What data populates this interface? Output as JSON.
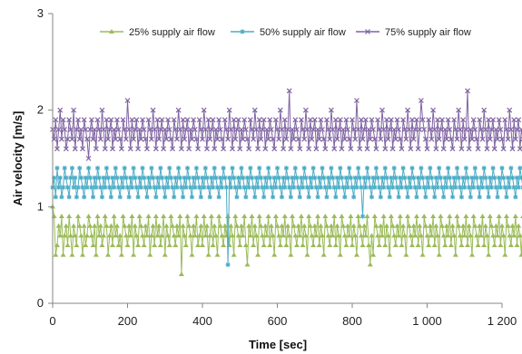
{
  "chart_data": {
    "type": "line",
    "xlabel": "Time [sec]",
    "ylabel": "Air velocity [m/s]",
    "xlim": [
      0,
      1200
    ],
    "ylim": [
      0,
      3
    ],
    "xticks": [
      0,
      200,
      400,
      600,
      800,
      1000,
      1200
    ],
    "xtick_labels": [
      "0",
      "200",
      "400",
      "600",
      "800",
      "1 000",
      "1 200"
    ],
    "yticks": [
      0,
      1,
      2,
      3
    ],
    "ytick_labels": [
      "0",
      "1",
      "2",
      "3"
    ],
    "grid": false,
    "legend_position": "top-right",
    "sample_interval_sec": 4,
    "series": [
      {
        "name": "25% supply air flow",
        "color": "#9BBB59",
        "marker": "triangle",
        "values": [
          1.0,
          0.9,
          0.5,
          0.6,
          0.8,
          0.7,
          0.9,
          0.5,
          0.7,
          0.8,
          0.6,
          0.9,
          0.7,
          0.5,
          0.8,
          0.7,
          0.6,
          0.9,
          0.8,
          0.7,
          0.5,
          0.8,
          0.6,
          0.7,
          0.9,
          0.8,
          0.7,
          0.6,
          0.8,
          0.5,
          0.9,
          0.7,
          0.8,
          0.6,
          0.7,
          0.9,
          0.8,
          0.5,
          0.7,
          0.8,
          0.6,
          0.9,
          0.7,
          0.8,
          0.6,
          0.7,
          0.5,
          0.9,
          0.8,
          0.7,
          0.6,
          0.8,
          0.7,
          0.9,
          0.5,
          0.8,
          0.7,
          0.6,
          0.9,
          0.8,
          0.7,
          0.6,
          0.8,
          0.7,
          0.9,
          0.5,
          0.7,
          0.8,
          0.6,
          0.9,
          0.7,
          0.8,
          0.6,
          0.7,
          0.9,
          0.5,
          0.8,
          0.7,
          0.6,
          0.9,
          0.8,
          0.7,
          0.6,
          0.8,
          0.7,
          0.9,
          0.3,
          0.8,
          0.7,
          0.6,
          0.9,
          0.8,
          0.7,
          0.5,
          0.8,
          0.7,
          0.9,
          0.6,
          0.7,
          0.8,
          0.6,
          0.9,
          0.7,
          0.8,
          0.5,
          0.7,
          0.9,
          0.6,
          0.8,
          0.7,
          0.5,
          0.9,
          0.8,
          0.7,
          0.6,
          0.8,
          0.7,
          0.9,
          0.6,
          0.8,
          0.7,
          0.5,
          0.9,
          0.8,
          0.7,
          0.6,
          0.8,
          0.7,
          0.9,
          0.6,
          0.4,
          0.8,
          0.7,
          0.9,
          0.6,
          0.8,
          0.7,
          0.5,
          0.9,
          0.8,
          0.7,
          0.6,
          0.8,
          0.7,
          0.9,
          0.6,
          0.8,
          0.7,
          0.5,
          0.9,
          0.8,
          0.7,
          0.6,
          0.8,
          0.7,
          0.9,
          0.6,
          0.8,
          0.7,
          0.5,
          0.9,
          0.8,
          0.7,
          0.6,
          0.8,
          0.7,
          0.9,
          0.6,
          0.8,
          0.7,
          0.5,
          0.9,
          0.8,
          0.7,
          0.6,
          0.8,
          0.7,
          0.9,
          0.6,
          0.8,
          0.7,
          0.5,
          0.9,
          0.8,
          0.7,
          0.6,
          0.8,
          0.7,
          0.9,
          0.6,
          0.8,
          0.7,
          0.5,
          0.9,
          0.8,
          0.7,
          0.6,
          0.8,
          0.7,
          0.9,
          0.6,
          0.8,
          0.7,
          0.5,
          0.9,
          0.8,
          0.7,
          0.6,
          0.8,
          0.7,
          0.9,
          0.6,
          0.4,
          0.7,
          0.5,
          0.9,
          0.8,
          0.7,
          0.6,
          0.8,
          0.7,
          0.9,
          0.6,
          0.8,
          0.7,
          0.5,
          0.9,
          0.8,
          0.7,
          0.6,
          0.8,
          0.7,
          0.9,
          0.6,
          0.8,
          0.7,
          0.5,
          0.9,
          0.8,
          0.7,
          0.6,
          0.8,
          0.7,
          0.9,
          0.6,
          0.8,
          0.7,
          0.5,
          0.9,
          0.8,
          0.7,
          0.6,
          0.8,
          0.7,
          0.9,
          0.6,
          0.8,
          0.7,
          0.5,
          0.9,
          0.8,
          0.7,
          0.6,
          0.8,
          0.7,
          0.9,
          0.6,
          0.8,
          0.7,
          0.5,
          0.9,
          0.8,
          0.7,
          0.6,
          0.8,
          0.7,
          0.9,
          0.6,
          0.8,
          0.7,
          0.5,
          0.9,
          0.8,
          0.7,
          0.6,
          0.8,
          0.7,
          0.9,
          0.6,
          0.8,
          0.7,
          0.5,
          0.9,
          0.8,
          0.7,
          0.6,
          0.8,
          0.7,
          0.9,
          0.6,
          0.8,
          0.7,
          0.5,
          0.9,
          0.8,
          0.7,
          0.6,
          0.8,
          0.7,
          0.9,
          0.6,
          0.8,
          0.7,
          0.5,
          0.9,
          0.8,
          0.7,
          0.6,
          0.8,
          0.7,
          0.9,
          0.6,
          0.8,
          0.7,
          0.5,
          0.9,
          0.8,
          0.7,
          0.6,
          0.8,
          0.7,
          0.9,
          0.6,
          0.8,
          0.7,
          0.5,
          0.9,
          0.8,
          0.7,
          0.6,
          0.8,
          0.7,
          1.0
        ]
      },
      {
        "name": "50% supply air flow",
        "color": "#4BACC6",
        "marker": "asterisk",
        "values": [
          1.2,
          1.3,
          1.1,
          1.4,
          1.2,
          1.3,
          1.1,
          1.2,
          1.4,
          1.3,
          1.2,
          1.1,
          1.3,
          1.4,
          1.2,
          1.3,
          1.1,
          1.2,
          1.4,
          1.3,
          1.2,
          1.1,
          1.3,
          1.2,
          1.4,
          1.3,
          1.2,
          1.1,
          1.3,
          1.2,
          1.4,
          1.3,
          1.2,
          1.1,
          1.3,
          1.2,
          1.4,
          1.3,
          1.2,
          1.1,
          1.3,
          1.2,
          1.4,
          1.3,
          1.2,
          1.1,
          1.3,
          1.2,
          1.4,
          1.3,
          1.2,
          1.1,
          1.3,
          1.2,
          1.4,
          1.3,
          1.2,
          1.1,
          1.3,
          1.2,
          1.4,
          1.3,
          1.2,
          1.1,
          1.3,
          1.2,
          1.4,
          1.3,
          1.2,
          1.1,
          1.3,
          1.2,
          1.4,
          1.3,
          1.2,
          1.1,
          1.3,
          1.2,
          1.4,
          1.3,
          1.2,
          1.1,
          1.3,
          1.2,
          1.4,
          1.3,
          1.2,
          1.1,
          1.3,
          1.2,
          1.4,
          1.3,
          1.2,
          1.1,
          1.3,
          1.2,
          1.4,
          1.3,
          1.2,
          1.1,
          1.3,
          1.2,
          1.4,
          1.3,
          1.2,
          1.1,
          1.3,
          1.2,
          1.4,
          1.3,
          1.2,
          1.1,
          1.3,
          1.2,
          1.4,
          1.3,
          1.2,
          0.4,
          1.3,
          1.2,
          1.4,
          1.3,
          1.2,
          1.1,
          1.3,
          1.2,
          1.4,
          1.3,
          1.2,
          1.1,
          1.3,
          1.2,
          1.4,
          1.3,
          1.2,
          1.1,
          1.3,
          1.2,
          1.4,
          1.3,
          1.2,
          1.1,
          1.3,
          1.2,
          1.4,
          1.3,
          1.2,
          1.1,
          1.3,
          1.2,
          1.4,
          1.3,
          1.2,
          1.1,
          1.3,
          1.2,
          1.4,
          1.3,
          1.2,
          1.1,
          1.3,
          1.2,
          1.4,
          1.3,
          1.2,
          1.1,
          1.3,
          1.2,
          1.4,
          1.3,
          1.2,
          1.1,
          1.3,
          1.2,
          1.4,
          1.3,
          1.2,
          1.1,
          1.3,
          1.2,
          1.4,
          1.3,
          1.2,
          1.1,
          1.3,
          1.2,
          1.4,
          1.3,
          1.2,
          1.1,
          1.3,
          1.2,
          1.4,
          1.3,
          1.2,
          1.1,
          1.3,
          1.2,
          1.4,
          1.3,
          1.2,
          1.1,
          1.3,
          1.2,
          1.4,
          1.3,
          1.2,
          0.9,
          1.3,
          1.2,
          1.4,
          1.3,
          1.2,
          1.1,
          1.3,
          1.2,
          1.4,
          1.3,
          1.2,
          1.1,
          1.3,
          1.2,
          1.4,
          1.3,
          1.2,
          1.1,
          1.3,
          1.2,
          1.4,
          1.3,
          1.2,
          1.1,
          1.3,
          1.2,
          1.4,
          1.3,
          1.2,
          1.1,
          1.3,
          1.2,
          1.4,
          1.3,
          1.2,
          1.1,
          1.3,
          1.2,
          1.4,
          1.3,
          1.2,
          1.1,
          1.3,
          1.2,
          1.4,
          1.3,
          1.2,
          1.1,
          1.3,
          1.2,
          1.4,
          1.3,
          1.2,
          1.1,
          1.3,
          1.2,
          1.4,
          1.3,
          1.2,
          1.1,
          1.3,
          1.2,
          1.4,
          1.3,
          1.2,
          1.1,
          1.3,
          1.2,
          1.4,
          1.3,
          1.2,
          1.1,
          1.3,
          1.2,
          1.4,
          1.3,
          1.2,
          1.1,
          1.3,
          1.2,
          1.4,
          1.3,
          1.2,
          1.1,
          1.3,
          1.2,
          1.4,
          1.3,
          1.2,
          1.1,
          1.3,
          1.2,
          1.4,
          1.3,
          1.2,
          1.1,
          1.3,
          1.2,
          1.4,
          1.3,
          1.2,
          1.1,
          1.3,
          1.2,
          1.4,
          1.3,
          1.2,
          1.1,
          1.3,
          1.2,
          1.4
        ]
      },
      {
        "name": "75% supply air flow",
        "color": "#8064A2",
        "marker": "x",
        "values": [
          1.8,
          1.7,
          1.9,
          1.6,
          1.8,
          2.0,
          1.7,
          1.9,
          1.8,
          1.6,
          1.7,
          1.9,
          1.8,
          1.7,
          2.0,
          1.6,
          1.8,
          1.9,
          1.7,
          1.8,
          1.6,
          1.9,
          1.8,
          1.7,
          1.5,
          1.8,
          1.9,
          1.7,
          1.8,
          1.6,
          1.9,
          1.8,
          1.7,
          2.0,
          1.8,
          1.6,
          1.9,
          1.7,
          1.8,
          1.9,
          1.6,
          1.8,
          1.7,
          1.9,
          1.8,
          1.7,
          1.6,
          1.9,
          1.8,
          1.7,
          2.1,
          1.8,
          1.6,
          1.9,
          1.7,
          1.8,
          1.9,
          1.6,
          1.8,
          1.7,
          1.9,
          1.8,
          1.7,
          1.6,
          1.9,
          1.8,
          1.7,
          2.0,
          1.8,
          1.6,
          1.9,
          1.7,
          1.8,
          1.9,
          1.6,
          1.8,
          1.7,
          1.9,
          1.8,
          1.7,
          1.6,
          1.9,
          1.8,
          1.7,
          2.0,
          1.8,
          1.6,
          1.9,
          1.7,
          1.8,
          1.9,
          1.6,
          1.8,
          1.7,
          1.9,
          1.8,
          1.7,
          1.6,
          1.9,
          1.8,
          1.7,
          2.0,
          1.8,
          1.6,
          1.9,
          1.7,
          1.8,
          1.9,
          1.6,
          1.8,
          1.7,
          1.9,
          1.8,
          1.7,
          1.6,
          1.9,
          1.8,
          1.7,
          2.0,
          1.8,
          1.6,
          1.9,
          1.7,
          1.8,
          1.9,
          1.6,
          1.8,
          1.7,
          1.9,
          1.8,
          1.7,
          1.6,
          1.9,
          1.8,
          1.7,
          2.0,
          1.8,
          1.6,
          1.9,
          1.7,
          1.8,
          1.9,
          1.6,
          1.8,
          1.7,
          1.9,
          1.8,
          1.7,
          1.6,
          1.9,
          1.8,
          1.7,
          2.0,
          1.8,
          1.6,
          1.9,
          1.7,
          1.8,
          2.2,
          1.6,
          1.8,
          1.7,
          1.9,
          1.8,
          1.7,
          1.6,
          1.9,
          1.8,
          1.7,
          2.0,
          1.8,
          1.6,
          1.9,
          1.7,
          1.8,
          1.9,
          1.6,
          1.8,
          1.7,
          1.9,
          1.8,
          1.7,
          1.6,
          1.9,
          1.8,
          1.7,
          2.0,
          1.8,
          1.6,
          1.9,
          1.7,
          1.8,
          1.9,
          1.6,
          1.8,
          1.7,
          1.9,
          1.8,
          1.7,
          1.6,
          1.9,
          1.8,
          1.7,
          2.1,
          1.8,
          1.6,
          1.9,
          1.7,
          1.8,
          1.9,
          1.6,
          1.8,
          1.7,
          1.9,
          1.8,
          1.7,
          1.6,
          1.9,
          1.8,
          1.7,
          2.0,
          1.8,
          1.6,
          1.9,
          1.7,
          1.8,
          1.9,
          1.6,
          1.8,
          1.7,
          1.9,
          1.8,
          1.7,
          1.6,
          1.9,
          1.8,
          1.7,
          2.0,
          1.8,
          1.6,
          1.9,
          1.7,
          1.8,
          1.9,
          1.6,
          1.8,
          2.1,
          1.9,
          1.8,
          1.7,
          1.6,
          1.9,
          1.8,
          1.7,
          2.0,
          1.8,
          1.6,
          1.9,
          1.7,
          1.8,
          1.9,
          1.6,
          1.8,
          1.7,
          1.9,
          1.8,
          1.7,
          1.6,
          1.9,
          1.8,
          1.7,
          2.0,
          1.8,
          1.6,
          1.9,
          1.7,
          1.8,
          2.2,
          1.6,
          1.8,
          1.7,
          1.9,
          1.8,
          1.7,
          1.6,
          1.9,
          1.8,
          1.7,
          2.0,
          1.8,
          1.6,
          1.9,
          1.7,
          1.8,
          1.9,
          1.6,
          1.8,
          1.7,
          1.9,
          1.8,
          1.7,
          1.6,
          1.9,
          1.8,
          1.7,
          2.0,
          1.8,
          1.6,
          1.9,
          1.7,
          1.8,
          1.9,
          1.6,
          1.8,
          1.7,
          1.9,
          1.8,
          1.7,
          1.6,
          1.9,
          1.8,
          1.7,
          2.0,
          1.8,
          1.6,
          1.9,
          1.7,
          1.8,
          1.9,
          1.6,
          1.8,
          1.7,
          1.9,
          1.8,
          1.7,
          1.6,
          1.9,
          1.8,
          1.7,
          2.0,
          1.8
        ]
      }
    ]
  }
}
